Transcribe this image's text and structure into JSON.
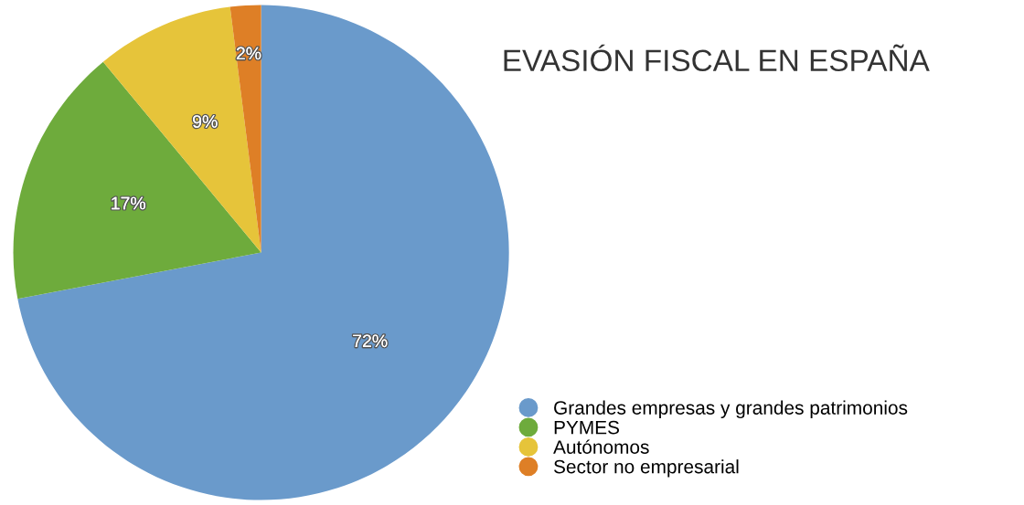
{
  "chart_data": {
    "type": "pie",
    "title": "EVASIÓN FISCAL EN ESPAÑA",
    "categories": [
      "Grandes empresas y grandes patrimonios",
      "PYMES",
      "Autónomos",
      "Sector no empresarial"
    ],
    "values": [
      72,
      17,
      9,
      2
    ],
    "colors": [
      "#6a9acb",
      "#6eab3c",
      "#e6c43a",
      "#de7f26"
    ],
    "value_labels": [
      "72%",
      "17%",
      "9%",
      "2%"
    ],
    "legend": "bottom right"
  }
}
